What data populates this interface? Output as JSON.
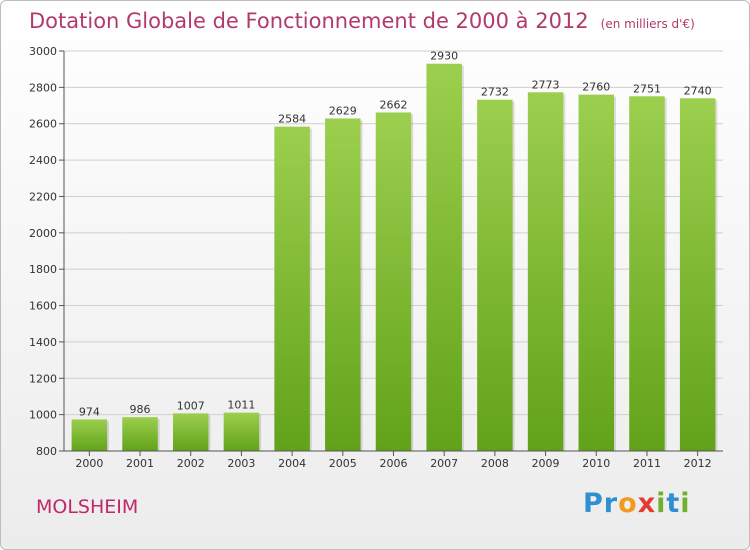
{
  "title": "Dotation Globale de Fonctionnement de 2000 à 2012",
  "subtitle": "(en milliers d'€)",
  "city": "MOLSHEIM",
  "logo": {
    "text": "Proxiti",
    "letters": [
      {
        "ch": "P",
        "color": "#2f8fd1"
      },
      {
        "ch": "r",
        "color": "#2f8fd1"
      },
      {
        "ch": "o",
        "color": "#f29a1f"
      },
      {
        "ch": "x",
        "color": "#e33b2f"
      },
      {
        "ch": "i",
        "color": "#6fb12f"
      },
      {
        "ch": "t",
        "color": "#2f8fd1"
      },
      {
        "ch": "i",
        "color": "#6fb12f"
      }
    ]
  },
  "colors": {
    "bar_top": "#9ccf4e",
    "bar_bottom": "#62a21a",
    "title": "#b23a6b",
    "grid": "#cfcfcf"
  },
  "chart_data": {
    "type": "bar",
    "title": "Dotation Globale de Fonctionnement de 2000 à 2012",
    "subtitle": "(en milliers d'€)",
    "categories": [
      "2000",
      "2001",
      "2002",
      "2003",
      "2004",
      "2005",
      "2006",
      "2007",
      "2008",
      "2009",
      "2010",
      "2011",
      "2012"
    ],
    "values": [
      974,
      986,
      1007,
      1011,
      2584,
      2629,
      2662,
      2930,
      2732,
      2773,
      2760,
      2751,
      2740
    ],
    "ylim": [
      800,
      3000
    ],
    "yticks": [
      800,
      1000,
      1200,
      1400,
      1600,
      1800,
      2000,
      2200,
      2400,
      2600,
      2800,
      3000
    ],
    "grid": true,
    "legend": "none"
  }
}
